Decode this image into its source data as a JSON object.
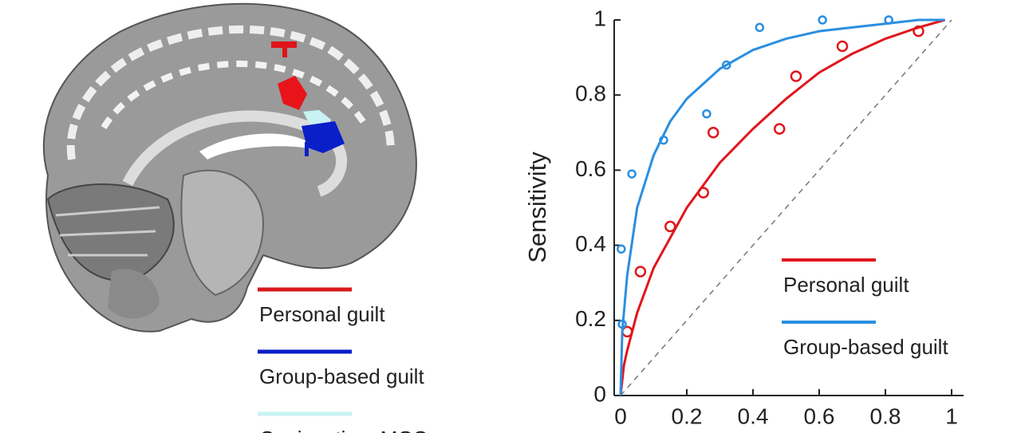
{
  "brain_figure": {
    "legend": [
      {
        "name": "Personal guilt",
        "color": "#d7191c"
      },
      {
        "name": "Group-based guilt",
        "color": "#0a1fc8"
      },
      {
        "name": "Conjunction: MCC",
        "color": "#c8f2f4"
      }
    ]
  },
  "chart_data": {
    "type": "scatter",
    "ylabel": "Sensitivity",
    "xlim": [
      0,
      1
    ],
    "ylim": [
      0,
      1
    ],
    "xticks": [
      0,
      0.2,
      0.4,
      0.6,
      0.8,
      1
    ],
    "yticks": [
      0,
      0.2,
      0.4,
      0.6,
      0.8,
      1
    ],
    "diagonal": true,
    "legend": "lower right",
    "series": [
      {
        "name": "Personal guilt",
        "color": "#e0161c",
        "x": [
          0.02,
          0.06,
          0.15,
          0.25,
          0.28,
          0.48,
          0.53,
          0.67,
          0.9
        ],
        "y": [
          0.17,
          0.33,
          0.45,
          0.54,
          0.7,
          0.71,
          0.85,
          0.93,
          0.97
        ],
        "fit_x": [
          0,
          0.01,
          0.02,
          0.05,
          0.1,
          0.2,
          0.3,
          0.4,
          0.5,
          0.6,
          0.7,
          0.8,
          0.9,
          0.98
        ],
        "fit_y": [
          0,
          0.08,
          0.12,
          0.22,
          0.34,
          0.5,
          0.62,
          0.71,
          0.79,
          0.86,
          0.91,
          0.95,
          0.98,
          1
        ]
      },
      {
        "name": "Group-based guilt",
        "color": "#2b8fe0",
        "x": [
          0.005,
          0.002,
          0.034,
          0.13,
          0.26,
          0.32,
          0.42,
          0.61,
          0.81
        ],
        "y": [
          0.19,
          0.39,
          0.59,
          0.68,
          0.75,
          0.88,
          0.98,
          1,
          1
        ],
        "fit_x": [
          0,
          0.005,
          0.02,
          0.05,
          0.1,
          0.15,
          0.2,
          0.3,
          0.4,
          0.5,
          0.6,
          0.7,
          0.8,
          0.9,
          0.98
        ],
        "fit_y": [
          0,
          0.17,
          0.32,
          0.5,
          0.64,
          0.73,
          0.79,
          0.87,
          0.92,
          0.95,
          0.97,
          0.98,
          0.99,
          1,
          1
        ]
      }
    ]
  }
}
